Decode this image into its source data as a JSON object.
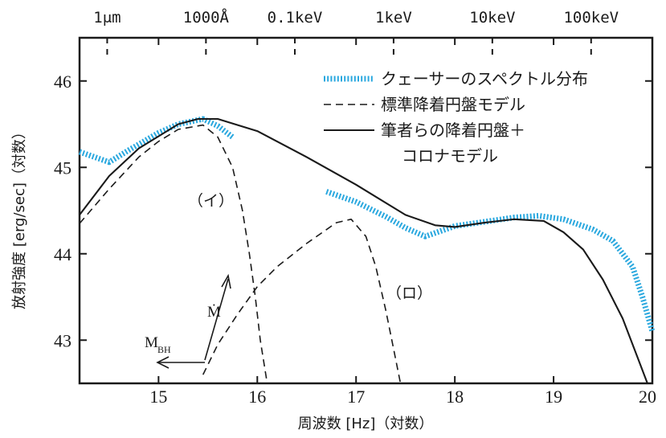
{
  "chart_data": {
    "type": "line",
    "xlabel": "周波数 [Hz]（対数）",
    "ylabel": "放射強度 [erg/sec]（対数）",
    "xlim": [
      14.2,
      20.0
    ],
    "ylim": [
      42.5,
      46.5
    ],
    "grid": false,
    "legend_position": "top-right",
    "x_ticks": [
      15,
      16,
      17,
      18,
      19,
      20
    ],
    "x_tick_labels": [
      "15",
      "16",
      "17",
      "18",
      "19",
      "20"
    ],
    "y_ticks": [
      43,
      44,
      45,
      46
    ],
    "y_tick_labels": [
      "43",
      "44",
      "45",
      "46"
    ],
    "top_axis": {
      "ticks": [
        {
          "x": 14.48,
          "label": "1μm"
        },
        {
          "x": 15.48,
          "label": "1000Å"
        },
        {
          "x": 16.38,
          "label": "0.1keV"
        },
        {
          "x": 17.38,
          "label": "1keV"
        },
        {
          "x": 18.38,
          "label": "10keV"
        },
        {
          "x": 19.38,
          "label": "100keV"
        }
      ]
    },
    "series": [
      {
        "name": "クェーサーのスペクトル分布",
        "style": "dotted",
        "color": "#2aa8df",
        "segments": [
          [
            [
              14.2,
              45.18
            ],
            [
              14.5,
              45.06
            ],
            [
              14.7,
              45.2
            ],
            [
              15.0,
              45.4
            ],
            [
              15.2,
              45.5
            ],
            [
              15.45,
              45.56
            ],
            [
              15.6,
              45.48
            ],
            [
              15.75,
              45.35
            ]
          ],
          [
            [
              16.7,
              44.72
            ],
            [
              17.0,
              44.6
            ],
            [
              17.3,
              44.43
            ],
            [
              17.5,
              44.3
            ],
            [
              17.7,
              44.2
            ],
            [
              18.0,
              44.32
            ],
            [
              18.3,
              44.37
            ],
            [
              18.6,
              44.42
            ],
            [
              18.85,
              44.44
            ],
            [
              19.1,
              44.4
            ],
            [
              19.4,
              44.28
            ],
            [
              19.6,
              44.15
            ],
            [
              19.8,
              43.85
            ],
            [
              19.9,
              43.5
            ],
            [
              20.0,
              43.1
            ]
          ]
        ]
      },
      {
        "name": "標準降着円盤モデル",
        "style": "dashed",
        "color": "#1a1a1a",
        "segments": [
          [
            [
              14.2,
              44.35
            ],
            [
              14.5,
              44.75
            ],
            [
              14.8,
              45.12
            ],
            [
              15.0,
              45.3
            ],
            [
              15.2,
              45.44
            ],
            [
              15.45,
              45.49
            ],
            [
              15.6,
              45.35
            ],
            [
              15.75,
              45.0
            ],
            [
              15.85,
              44.5
            ],
            [
              15.92,
              44.0
            ],
            [
              15.98,
              43.5
            ],
            [
              16.03,
              43.0
            ],
            [
              16.1,
              42.5
            ]
          ],
          [
            [
              15.45,
              42.6
            ],
            [
              15.6,
              42.95
            ],
            [
              15.8,
              43.3
            ],
            [
              16.0,
              43.62
            ],
            [
              16.2,
              43.85
            ],
            [
              16.5,
              44.12
            ],
            [
              16.8,
              44.36
            ],
            [
              16.95,
              44.4
            ],
            [
              17.1,
              44.2
            ],
            [
              17.2,
              43.85
            ],
            [
              17.3,
              43.35
            ],
            [
              17.38,
              42.9
            ],
            [
              17.45,
              42.5
            ]
          ]
        ]
      },
      {
        "name": "筆者らの降着円盤＋コロナモデル",
        "style": "solid",
        "color": "#1a1a1a",
        "segments": [
          [
            [
              14.2,
              44.45
            ],
            [
              14.5,
              44.9
            ],
            [
              14.8,
              45.22
            ],
            [
              15.0,
              45.36
            ],
            [
              15.2,
              45.5
            ],
            [
              15.4,
              45.56
            ],
            [
              15.6,
              45.56
            ],
            [
              16.0,
              45.42
            ],
            [
              16.5,
              45.12
            ],
            [
              17.0,
              44.8
            ],
            [
              17.5,
              44.45
            ],
            [
              17.8,
              44.33
            ],
            [
              18.0,
              44.31
            ],
            [
              18.3,
              44.36
            ],
            [
              18.6,
              44.4
            ],
            [
              18.9,
              44.38
            ],
            [
              19.1,
              44.25
            ],
            [
              19.3,
              44.05
            ],
            [
              19.5,
              43.7
            ],
            [
              19.7,
              43.25
            ],
            [
              19.85,
              42.8
            ],
            [
              19.95,
              42.5
            ]
          ]
        ]
      }
    ],
    "legend": [
      {
        "label": "クェーサーのスペクトル分布",
        "style": "dotted",
        "color": "#2aa8df"
      },
      {
        "label": "標準降着円盤モデル",
        "style": "dashed",
        "color": "#1a1a1a"
      },
      {
        "label": "筆者らの降着円盤＋",
        "label2": "コロナモデル",
        "style": "solid",
        "color": "#1a1a1a"
      }
    ],
    "annotations": {
      "i_label": "（イ）",
      "ro_label": "（ロ）",
      "mdot_label": "Ṁ",
      "mbh_main": "M",
      "mbh_sub": "BH"
    }
  }
}
